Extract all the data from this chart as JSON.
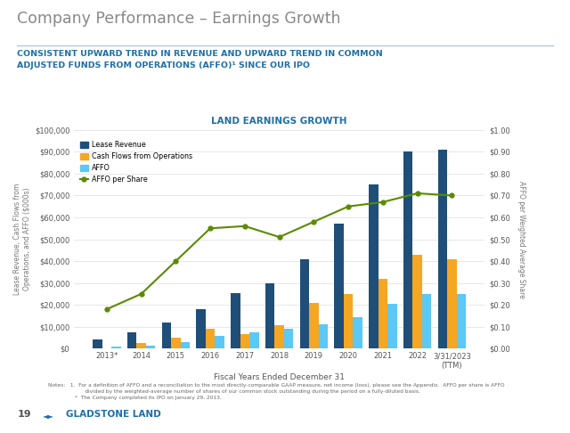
{
  "title_main": "Company Performance – Earnings Growth",
  "subtitle": "CONSISTENT UPWARD TREND IN REVENUE AND UPWARD TREND IN COMMON\nADJUSTED FUNDS FROM OPERATIONS (AFFO)¹ SINCE OUR IPO",
  "chart_title": "LAND EARNINGS GROWTH",
  "xlabel": "Fiscal Years Ended December 31",
  "ylabel_left": "Lease Revenue, Cash Flows from\nOperations, and AFFO ($000s)",
  "ylabel_right": "AFFO per Weighted Average Share",
  "categories": [
    "2013*",
    "2014",
    "2015",
    "2016",
    "2017",
    "2018",
    "2019",
    "2020",
    "2021",
    "2022",
    "3/31/2023\n(TTM)"
  ],
  "lease_revenue": [
    4000,
    7500,
    12000,
    18000,
    25500,
    30000,
    41000,
    57000,
    75000,
    90000,
    91000
  ],
  "cash_flows": [
    0,
    2500,
    5000,
    9000,
    6500,
    10500,
    21000,
    25000,
    32000,
    43000,
    41000
  ],
  "affo": [
    1000,
    1500,
    3000,
    6000,
    7500,
    9000,
    11000,
    14500,
    20500,
    25000,
    25000
  ],
  "affo_per_share": [
    0.18,
    0.25,
    0.4,
    0.55,
    0.56,
    0.51,
    0.58,
    0.65,
    0.67,
    0.71,
    0.7
  ],
  "bar_color_lease": "#1f4e79",
  "bar_color_cash": "#f5a623",
  "bar_color_affo": "#5bc8f5",
  "line_color_affo_share": "#5a8a00",
  "bg_color": "#ffffff",
  "title_main_color": "#888888",
  "subtitle_color": "#1f6fa8",
  "chart_title_color": "#1f6fa8",
  "xlabel_color": "#555555",
  "ylabel_color": "#777777",
  "grid_color": "#dddddd",
  "ylim_left": [
    0,
    100000
  ],
  "ylim_right": [
    0,
    1.0
  ],
  "yticks_left": [
    0,
    10000,
    20000,
    30000,
    40000,
    50000,
    60000,
    70000,
    80000,
    90000,
    100000
  ],
  "yticks_right": [
    0.0,
    0.1,
    0.2,
    0.3,
    0.4,
    0.5,
    0.6,
    0.7,
    0.8,
    0.9,
    1.0
  ],
  "notes": "Notes:   1.  For a definition of AFFO and a reconciliation to the most directly-comparable GAAP measure, net income (loss), please see the Appendix.  AFFO per share is AFFO\n                      divided by the weighted-average number of shares of our common stock outstanding during the period on a fully-diluted basis.\n                *  The Company completed its IPO on January 29, 2013.",
  "footer_num": "19",
  "footer_logo": "GLADSTONE LAND"
}
